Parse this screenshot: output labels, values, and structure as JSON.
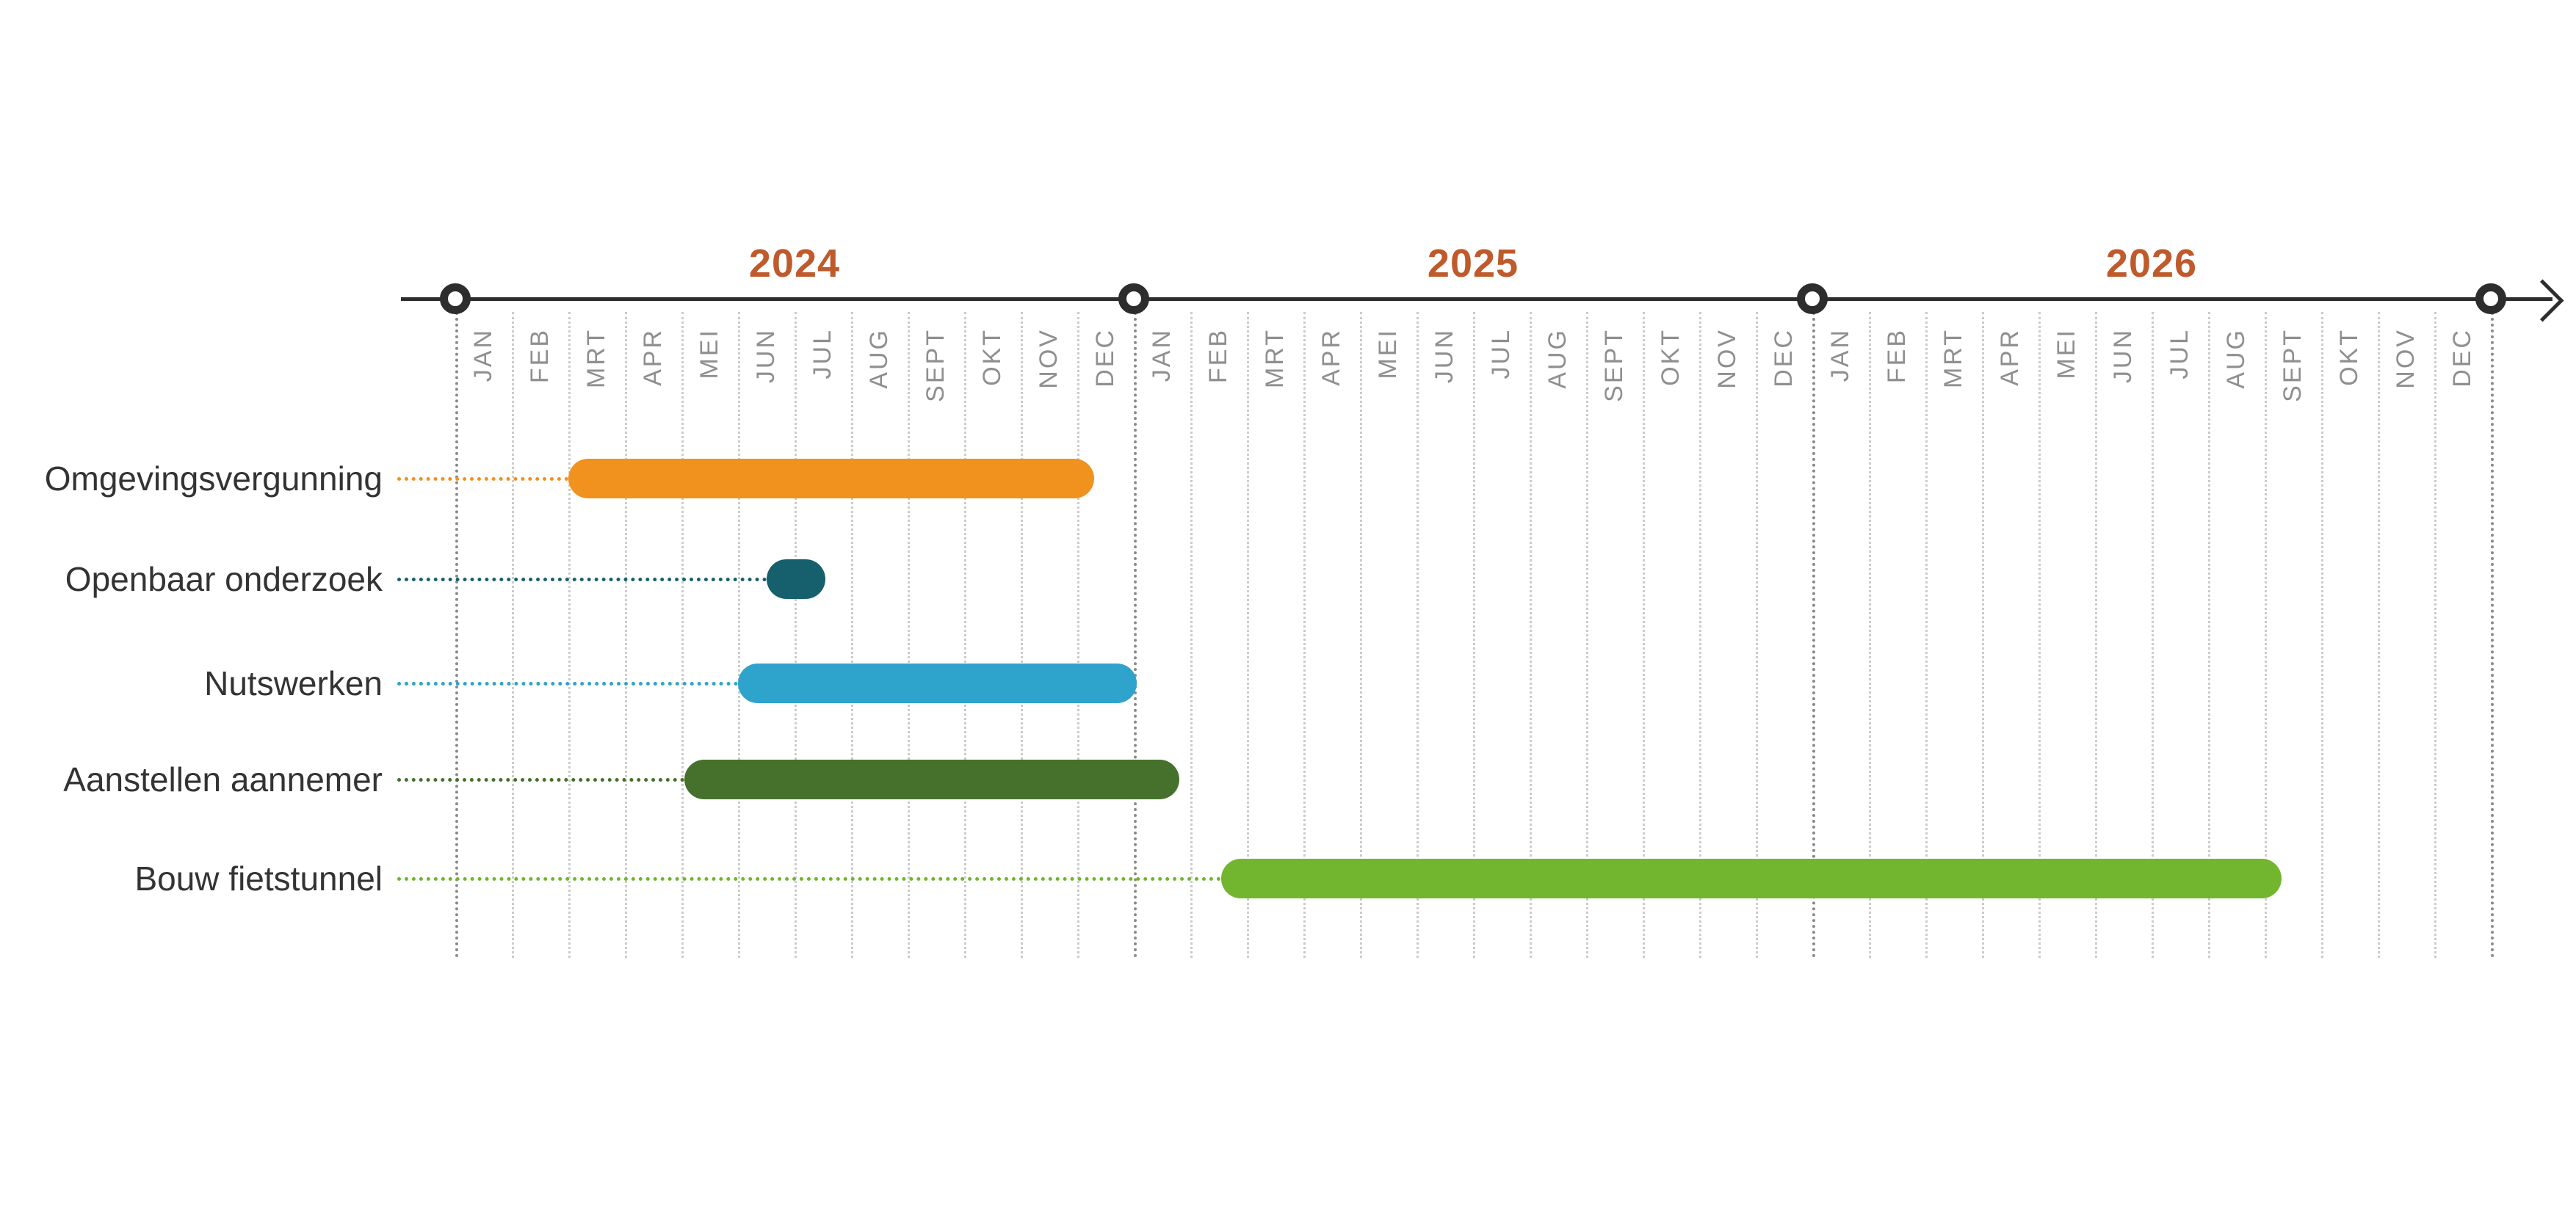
{
  "chart_data": {
    "type": "gantt",
    "title": "",
    "axis": {
      "unit": "months",
      "origin_label": "JAN 2024",
      "years": [
        "2024",
        "2025",
        "2026"
      ],
      "months": [
        "JAN",
        "FEB",
        "MRT",
        "APR",
        "MEI",
        "JUN",
        "JUL",
        "AUG",
        "SEPT",
        "OKT",
        "NOV",
        "DEC"
      ],
      "grid": "dotted-vertical-per-month",
      "year_boundary_markers": "circle-on-axis"
    },
    "tasks": [
      {
        "label": "Omgevingsvergunning",
        "color": "#F1911E",
        "start_offset_months": 2.0,
        "end_offset_months": 11.3,
        "start_label": "MRT 2024",
        "end_label": "DEC 2024"
      },
      {
        "label": "Openbaar onderzoek",
        "color": "#15606C",
        "start_offset_months": 5.5,
        "end_offset_months": 6.55,
        "start_label": "JUN 2024",
        "end_label": "JUL 2024"
      },
      {
        "label": "Nutswerken",
        "color": "#2EA3CB",
        "start_offset_months": 5.0,
        "end_offset_months": 12.05,
        "start_label": "JUN 2024",
        "end_label": "DEC 2024"
      },
      {
        "label": "Aanstellen aannemer",
        "color": "#45712C",
        "start_offset_months": 4.05,
        "end_offset_months": 12.8,
        "start_label": "MEI 2024",
        "end_label": "JAN 2025"
      },
      {
        "label": "Bouw fietstunnel",
        "color": "#72B52E",
        "start_offset_months": 13.55,
        "end_offset_months": 32.3,
        "start_label": "FEB 2025",
        "end_label": "SEPT 2026"
      }
    ]
  },
  "colors": {
    "axis": "#2D2D2D",
    "year_label": "#BE5A2B",
    "month_label": "#8F8F8F",
    "task_label": "#333333",
    "grid_month": "#CBCBCB",
    "grid_year": "#8A8A8A",
    "background": "#FFFFFF"
  }
}
